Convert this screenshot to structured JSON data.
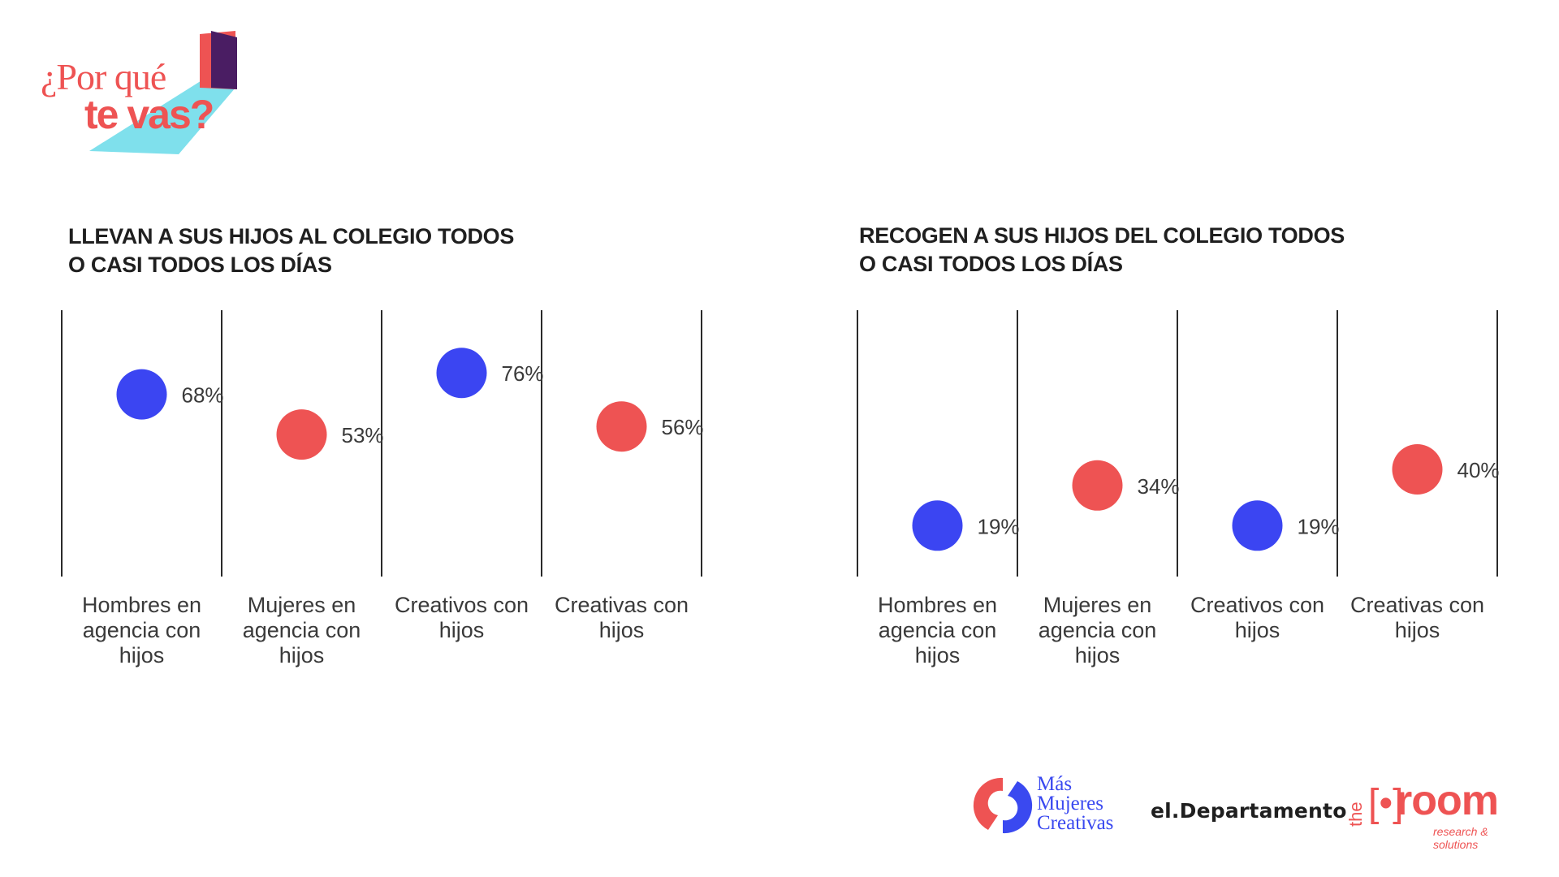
{
  "colors": {
    "blue": "#3b45f2",
    "red": "#ee5353",
    "logo_cyan": "#7fe0ec",
    "logo_purple": "#4a1d63"
  },
  "logo": {
    "line1": "¿Por qué",
    "line2": "te vas?"
  },
  "chart_data": [
    {
      "type": "scatter",
      "title": "LLEVAN A SUS HIJOS AL COLEGIO TODOS O CASI TODOS LOS DÍAS",
      "title_lines": [
        "LLEVAN A SUS HIJOS AL COLEGIO TODOS",
        "O CASI TODOS LOS DÍAS"
      ],
      "categories": [
        [
          "Hombres en",
          "agencia con",
          "hijos"
        ],
        [
          "Mujeres en",
          "agencia con",
          "hijos"
        ],
        [
          "Creativos con",
          "hijos"
        ],
        [
          "Creativas con",
          "hijos"
        ]
      ],
      "values": [
        68,
        53,
        76,
        56
      ],
      "labels": [
        "68%",
        "53%",
        "76%",
        "56%"
      ],
      "colors": [
        "blue",
        "red",
        "blue",
        "red"
      ],
      "ylim": [
        0,
        100
      ],
      "grid": "vertical separators",
      "legend": "none"
    },
    {
      "type": "scatter",
      "title": "RECOGEN A SUS HIJOS DEL COLEGIO TODOS O CASI TODOS LOS DÍAS",
      "title_lines": [
        "RECOGEN A SUS HIJOS DEL COLEGIO TODOS",
        "O CASI TODOS LOS DÍAS"
      ],
      "categories": [
        [
          "Hombres en",
          "agencia con",
          "hijos"
        ],
        [
          "Mujeres en",
          "agencia con",
          "hijos"
        ],
        [
          "Creativos con",
          "hijos"
        ],
        [
          "Creativas con",
          "hijos"
        ]
      ],
      "values": [
        19,
        34,
        19,
        40
      ],
      "labels": [
        "19%",
        "34%",
        "19%",
        "40%"
      ],
      "colors": [
        "blue",
        "red",
        "blue",
        "red"
      ],
      "ylim": [
        0,
        100
      ],
      "grid": "vertical separators",
      "legend": "none"
    }
  ],
  "footer": {
    "mmc_lines": [
      "Más",
      "Mujeres",
      "Creativas"
    ],
    "el_departamento": "el.Departamento",
    "the_room": {
      "the": "the",
      "word": "room",
      "tagline": "research & solutions"
    }
  }
}
